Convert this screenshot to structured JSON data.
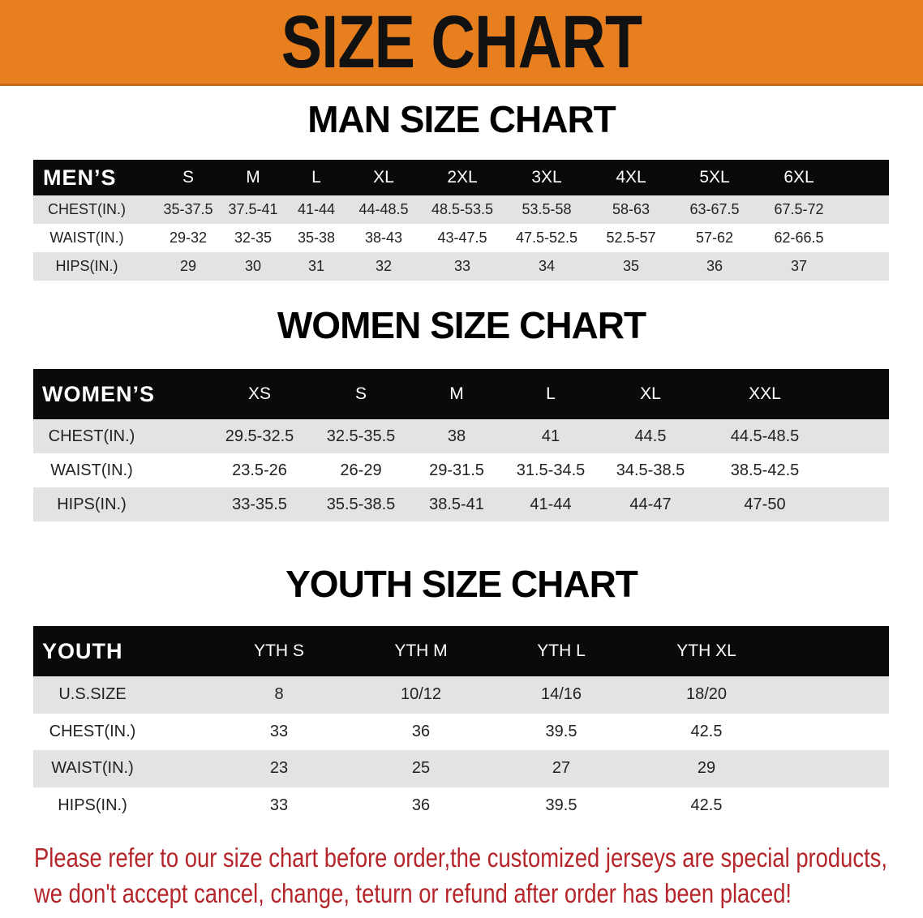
{
  "banner_title": "SIZE CHART",
  "sections": [
    {
      "title": "MAN SIZE CHART",
      "corner": "MEN’S",
      "columns": [
        "S",
        "M",
        "L",
        "XL",
        "2XL",
        "3XL",
        "4XL",
        "5XL",
        "6XL"
      ],
      "rows": [
        {
          "label": "CHEST(IN.)",
          "values": [
            "35-37.5",
            "37.5-41",
            "41-44",
            "44-48.5",
            "48.5-53.5",
            "53.5-58",
            "58-63",
            "63-67.5",
            "67.5-72"
          ]
        },
        {
          "label": "WAIST(IN.)",
          "values": [
            "29-32",
            "32-35",
            "35-38",
            "38-43",
            "43-47.5",
            "47.5-52.5",
            "52.5-57",
            "57-62",
            "62-66.5"
          ]
        },
        {
          "label": "HIPS(IN.)",
          "values": [
            "29",
            "30",
            "31",
            "32",
            "33",
            "34",
            "35",
            "36",
            "37"
          ]
        }
      ]
    },
    {
      "title": "WOMEN SIZE CHART",
      "corner": "WOMEN’S",
      "columns": [
        "XS",
        "S",
        "M",
        "L",
        "XL",
        "XXL"
      ],
      "rows": [
        {
          "label": "CHEST(IN.)",
          "values": [
            "29.5-32.5",
            "32.5-35.5",
            "38",
            "41",
            "44.5",
            "44.5-48.5"
          ]
        },
        {
          "label": "WAIST(IN.)",
          "values": [
            "23.5-26",
            "26-29",
            "29-31.5",
            "31.5-34.5",
            "34.5-38.5",
            "38.5-42.5"
          ]
        },
        {
          "label": "HIPS(IN.)",
          "values": [
            "33-35.5",
            "35.5-38.5",
            "38.5-41",
            "41-44",
            "44-47",
            "47-50"
          ]
        }
      ]
    },
    {
      "title": "YOUTH SIZE CHART",
      "corner": "YOUTH",
      "columns": [
        "YTH S",
        "YTH M",
        "YTH L",
        "YTH XL"
      ],
      "rows": [
        {
          "label": "U.S.SIZE",
          "values": [
            "8",
            "10/12",
            "14/16",
            "18/20"
          ]
        },
        {
          "label": "CHEST(IN.)",
          "values": [
            "33",
            "36",
            "39.5",
            "42.5"
          ]
        },
        {
          "label": "WAIST(IN.)",
          "values": [
            "23",
            "25",
            "27",
            "29"
          ]
        },
        {
          "label": "HIPS(IN.)",
          "values": [
            "33",
            "36",
            "39.5",
            "42.5"
          ]
        }
      ]
    }
  ],
  "footer": {
    "line1": "Please refer to our size chart before order,the customized jerseys are special products,",
    "line2": "we don't accept cancel, change, teturn or refund after order has been placed!"
  },
  "colors": {
    "banner": "#e87f1e",
    "header_row": "#0a0a0a",
    "stripe": "#e3e3e3",
    "footer_text": "#b5262a"
  }
}
